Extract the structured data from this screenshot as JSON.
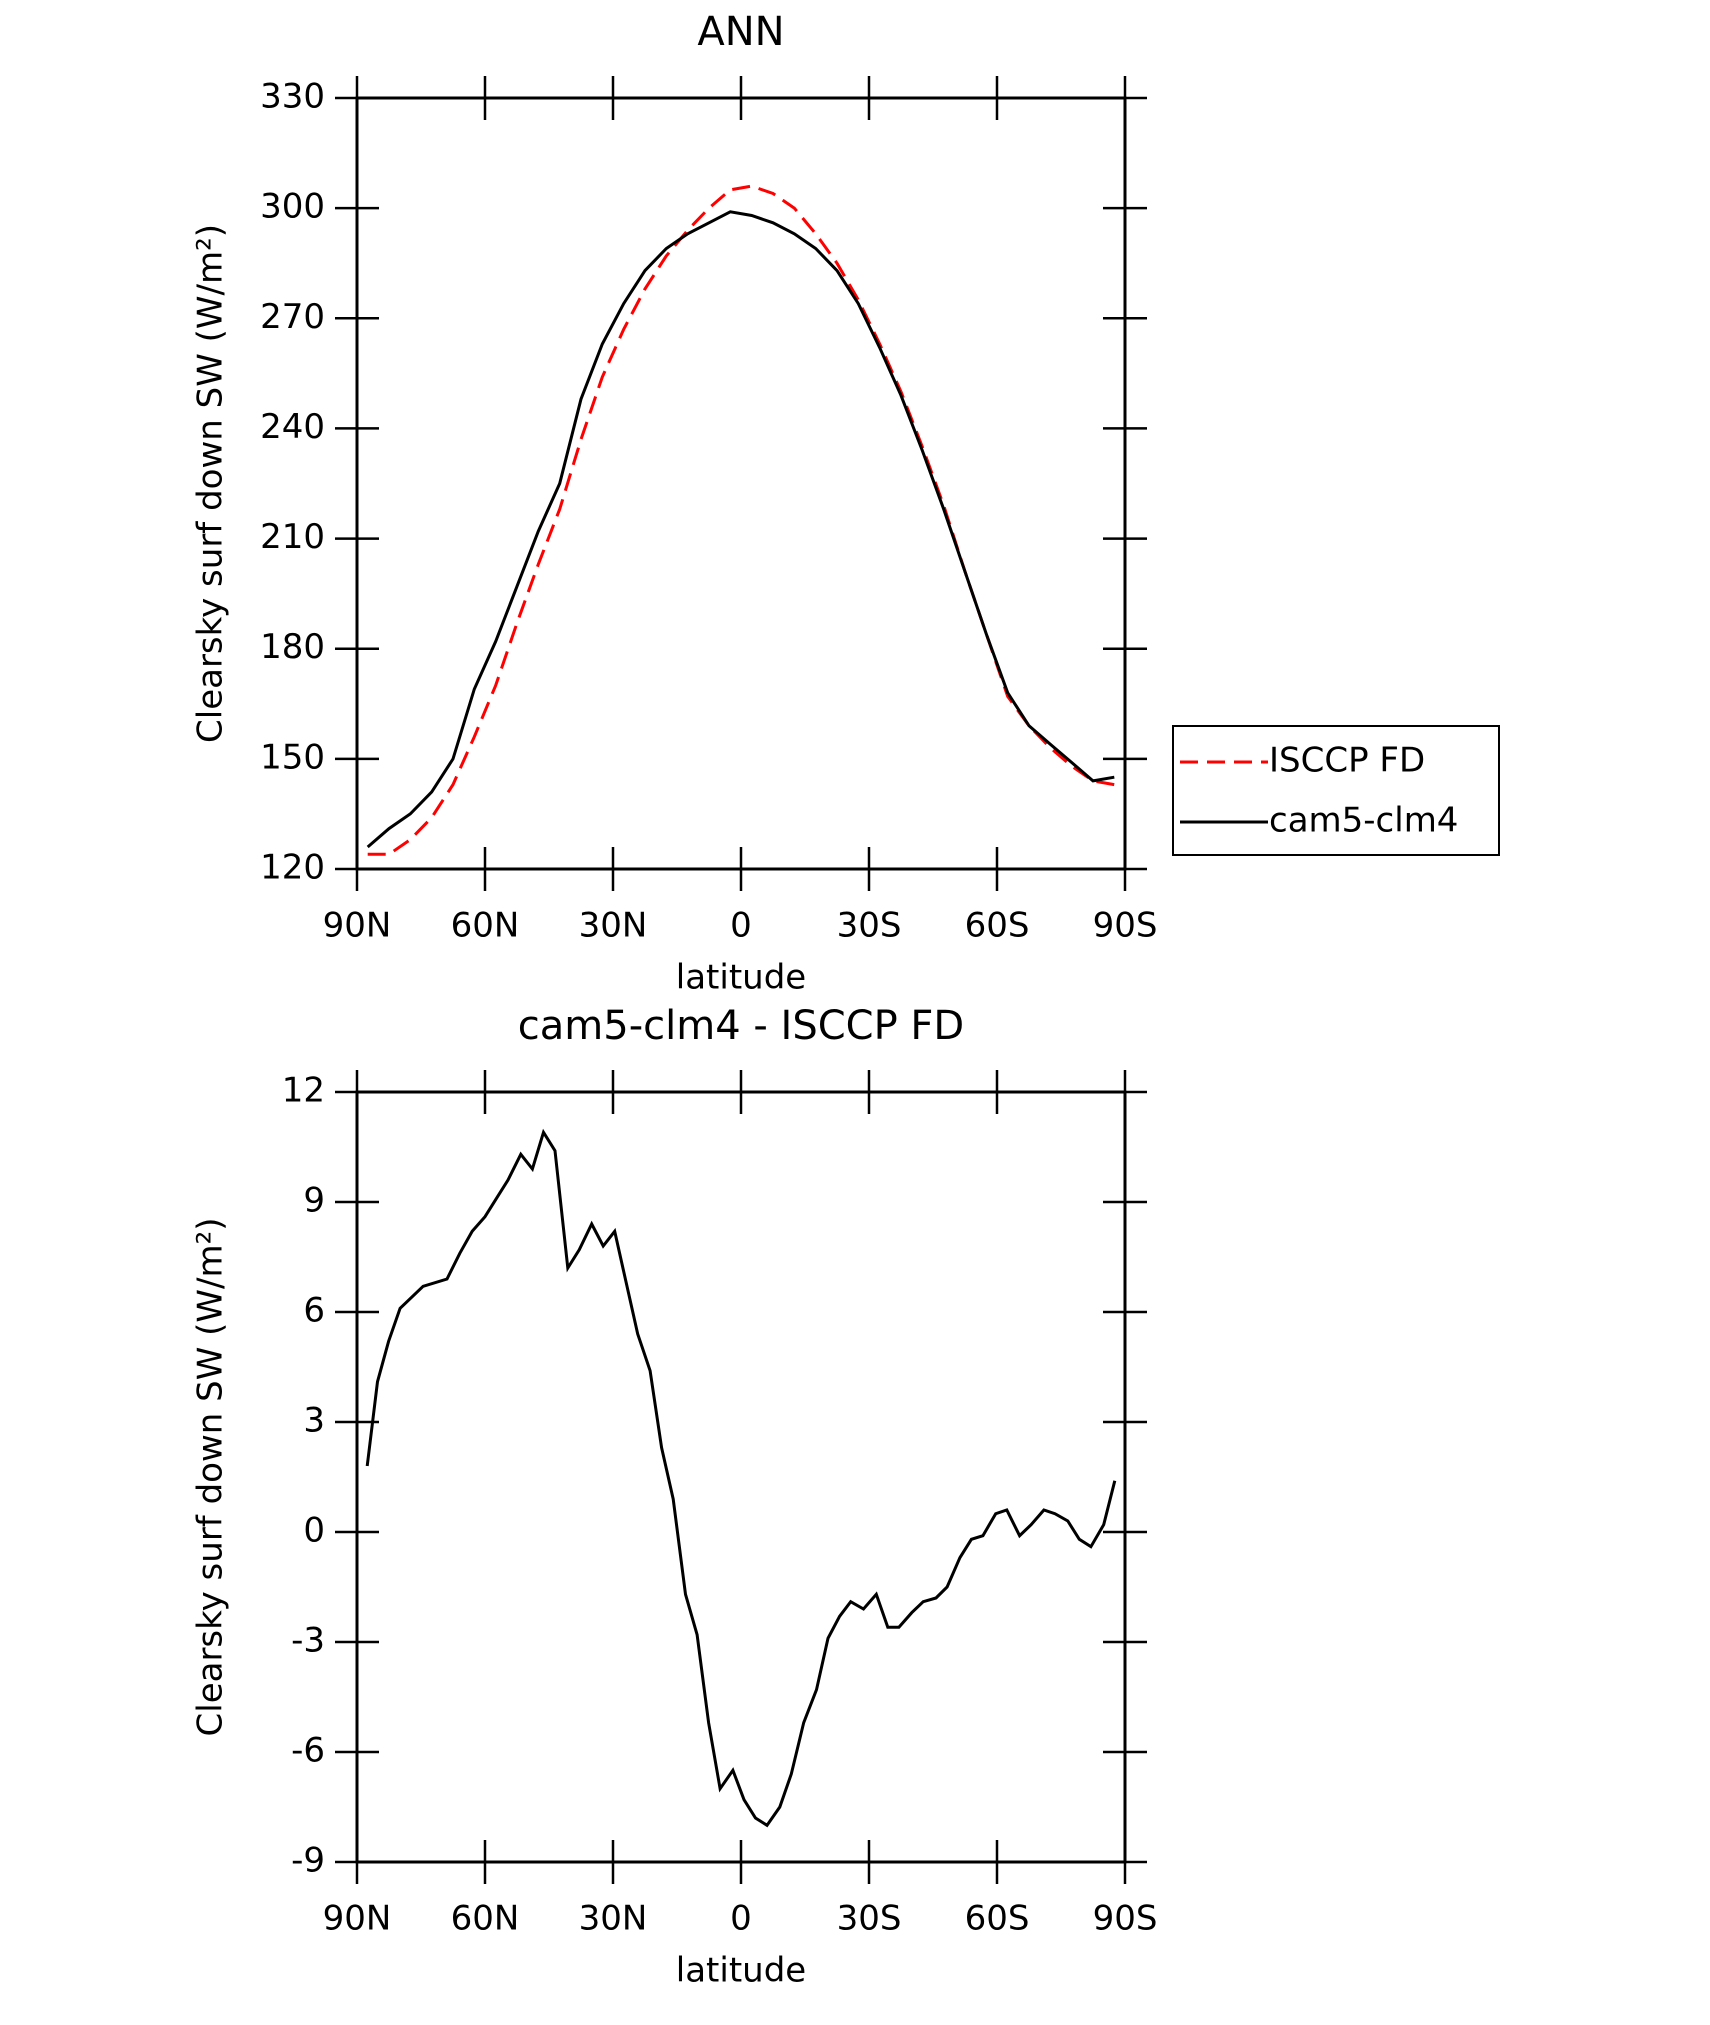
{
  "chart_data": [
    {
      "type": "line",
      "title": "ANN",
      "xlabel": "latitude",
      "ylabel": "Clearsky surf down SW (W/m²)",
      "x": [
        87.5,
        82.5,
        77.5,
        72.5,
        67.5,
        62.5,
        57.5,
        52.5,
        47.5,
        42.5,
        37.5,
        32.5,
        27.5,
        22.5,
        17.5,
        12.5,
        7.5,
        2.5,
        -2.5,
        -7.5,
        -12.5,
        -17.5,
        -22.5,
        -27.5,
        -32.5,
        -37.5,
        -42.5,
        -47.5,
        -52.5,
        -57.5,
        -62.5,
        -67.5,
        -72.5,
        -77.5,
        -82.5,
        -87.5
      ],
      "series": [
        {
          "name": "ISCCP FD",
          "color": "#ff0000",
          "line_style": "dashed",
          "values": [
            124,
            124,
            128,
            134,
            143,
            156,
            170,
            187,
            203,
            218,
            237,
            254,
            267,
            278,
            287,
            294,
            300,
            305,
            306,
            304,
            300,
            293,
            285,
            275,
            263,
            250,
            235,
            219,
            201,
            184,
            167,
            159,
            153,
            148,
            144,
            143
          ]
        },
        {
          "name": "cam5-clm4",
          "color": "#000000",
          "line_style": "solid",
          "values": [
            126,
            131,
            135,
            141,
            150,
            169,
            182,
            197,
            212,
            225,
            248,
            263,
            274,
            283,
            289,
            293,
            296,
            299,
            298,
            296,
            293,
            289,
            283,
            274,
            262,
            249,
            234,
            218,
            201,
            184,
            168,
            159,
            154,
            149,
            144,
            145
          ]
        }
      ],
      "xlim": [
        90,
        -90
      ],
      "xticks": [
        {
          "value": 90,
          "label": "90N"
        },
        {
          "value": 60,
          "label": "60N"
        },
        {
          "value": 30,
          "label": "30N"
        },
        0,
        {
          "value": -30,
          "label": "30S"
        },
        {
          "value": -60,
          "label": "60S"
        },
        {
          "value": -90,
          "label": "90S"
        }
      ],
      "ylim": [
        120,
        330
      ],
      "yticks": [
        120,
        150,
        180,
        210,
        240,
        270,
        300,
        330
      ],
      "legend": "right"
    },
    {
      "type": "line",
      "title": "cam5-clm4 - ISCCP FD",
      "xlabel": "latitude",
      "ylabel": "Clearsky surf down SW (W/m²)",
      "x": [
        87.6,
        85.2,
        82.6,
        79.9,
        74.5,
        68.9,
        65.9,
        63,
        60,
        57.3,
        54.6,
        51.6,
        48.9,
        46.3,
        43.6,
        40.6,
        37.9,
        35,
        32.3,
        29.6,
        26.9,
        24.2,
        21.3,
        18.6,
        15.9,
        13,
        10.3,
        7.6,
        4.9,
        1.9,
        -0.7,
        -3.4,
        -6.1,
        -9.1,
        -11.8,
        -14.7,
        -17.7,
        -20.4,
        -23.1,
        -25.7,
        -28.7,
        -31.7,
        -34.4,
        -37,
        -40,
        -42.7,
        -45.7,
        -48.3,
        -51.3,
        -54,
        -56.7,
        -59.7,
        -62.3,
        -65.3,
        -68,
        -71,
        -73.6,
        -76.6,
        -79.3,
        -82,
        -85,
        -87.6
      ],
      "values": [
        1.8,
        4.1,
        5.2,
        6.1,
        6.7,
        6.9,
        7.6,
        8.2,
        8.6,
        9.1,
        9.6,
        10.3,
        9.9,
        10.9,
        10.4,
        7.2,
        7.7,
        8.4,
        7.8,
        8.2,
        6.8,
        5.4,
        4.4,
        2.3,
        0.9,
        -1.7,
        -2.8,
        -5.2,
        -7.0,
        -6.5,
        -7.3,
        -7.8,
        -8.0,
        -7.5,
        -6.6,
        -5.2,
        -4.3,
        -2.9,
        -2.3,
        -1.9,
        -2.1,
        -1.7,
        -2.6,
        -2.6,
        -2.2,
        -1.9,
        -1.8,
        -1.5,
        -0.7,
        -0.2,
        -0.1,
        0.5,
        0.6,
        -0.1,
        0.2,
        0.6,
        0.5,
        0.3,
        -0.2,
        -0.4,
        0.2,
        1.4
      ],
      "color": "#000000",
      "xlim": [
        90,
        -90
      ],
      "xticks": [
        {
          "value": 90,
          "label": "90N"
        },
        {
          "value": 60,
          "label": "60N"
        },
        {
          "value": 30,
          "label": "30N"
        },
        0,
        {
          "value": -30,
          "label": "30S"
        },
        {
          "value": -60,
          "label": "60S"
        },
        {
          "value": -90,
          "label": "90S"
        }
      ],
      "ylim": [
        -9,
        12
      ],
      "yticks": [
        -9,
        -6,
        -3,
        0,
        3,
        6,
        9,
        12
      ]
    }
  ]
}
